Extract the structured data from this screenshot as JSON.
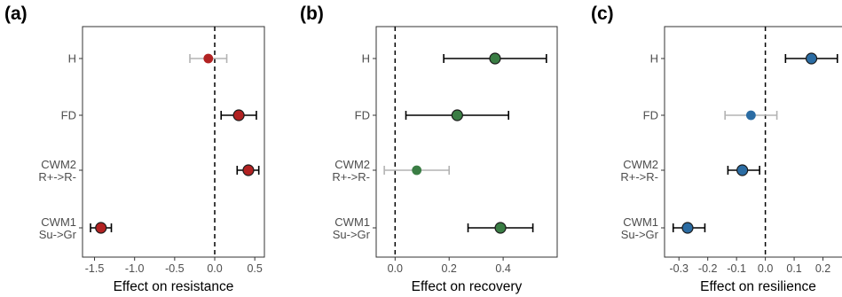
{
  "chart_data": [
    {
      "type": "forest",
      "panel_label": "(a)",
      "xlabel": "Effect on resistance",
      "categories": [
        "H",
        "FD",
        "CWM2\nR+->R-",
        "CWM1\nSu->Gr"
      ],
      "estimates": [
        -0.08,
        0.3,
        0.42,
        -1.42
      ],
      "ci_low": [
        -0.31,
        0.08,
        0.28,
        -1.55
      ],
      "ci_high": [
        0.15,
        0.52,
        0.55,
        -1.29
      ],
      "significant": [
        false,
        true,
        true,
        true
      ],
      "point_color": "#b22222",
      "xlim": [
        -1.65,
        0.62
      ],
      "xticks": [
        -1.5,
        -1.0,
        -0.5,
        0.0,
        0.5
      ],
      "xtick_labels": [
        "-1.5",
        "-1.0",
        "-0.5",
        "0.0",
        "0.5"
      ],
      "reference_line": 0
    },
    {
      "type": "forest",
      "panel_label": "(b)",
      "xlabel": "Effect on recovery",
      "categories": [
        "H",
        "FD",
        "CWM2\nR+->R-",
        "CWM1\nSu->Gr"
      ],
      "estimates": [
        0.37,
        0.23,
        0.08,
        0.39
      ],
      "ci_low": [
        0.18,
        0.04,
        -0.04,
        0.27
      ],
      "ci_high": [
        0.56,
        0.42,
        0.2,
        0.51
      ],
      "significant": [
        true,
        true,
        false,
        true
      ],
      "point_color": "#3a7d44",
      "xlim": [
        -0.07,
        0.6
      ],
      "xticks": [
        0.0,
        0.2,
        0.4
      ],
      "xtick_labels": [
        "0.0",
        "0.2",
        "0.4"
      ],
      "reference_line": 0
    },
    {
      "type": "forest",
      "panel_label": "(c)",
      "xlabel": "Effect on resilience",
      "categories": [
        "H",
        "FD",
        "CWM2\nR+->R-",
        "CWM1\nSu->Gr"
      ],
      "estimates": [
        0.16,
        -0.05,
        -0.08,
        -0.27
      ],
      "ci_low": [
        0.07,
        -0.14,
        -0.13,
        -0.32
      ],
      "ci_high": [
        0.25,
        0.04,
        -0.02,
        -0.21
      ],
      "significant": [
        true,
        false,
        true,
        true
      ],
      "point_color": "#2b6ca3",
      "xlim": [
        -0.35,
        0.3
      ],
      "xticks": [
        -0.3,
        -0.2,
        -0.1,
        0.0,
        0.1,
        0.2
      ],
      "xtick_labels": [
        "-0.3",
        "-0.2",
        "-0.1",
        "0.0",
        "0.1",
        "0.2"
      ],
      "reference_line": 0
    }
  ],
  "colors": {
    "significant_errorbar": "#000000",
    "nonsignificant_errorbar": "#b3b3b3",
    "axis": "#333333",
    "reference_line": "#000000"
  }
}
